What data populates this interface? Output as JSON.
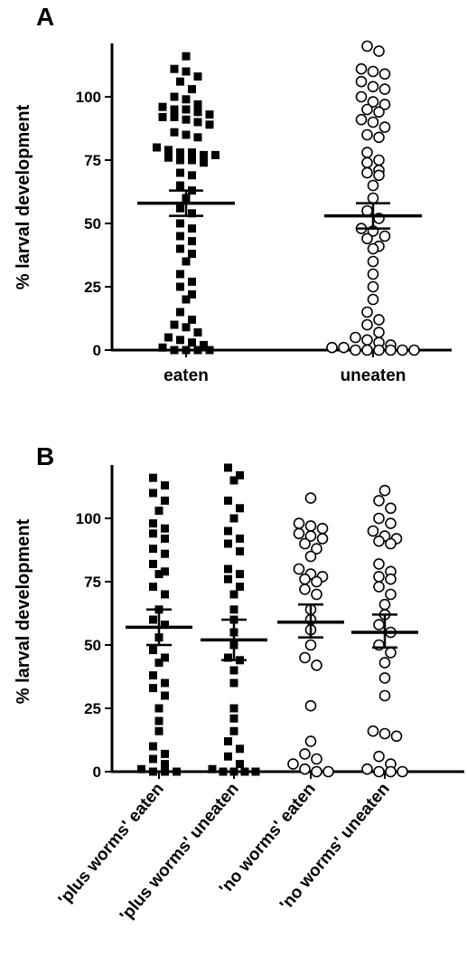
{
  "chart_data": [
    {
      "type": "scatter",
      "panel_label": "A",
      "ylabel": "% larval development",
      "ylim": [
        0,
        120
      ],
      "yticks": [
        0,
        25,
        50,
        75,
        100
      ],
      "categories": [
        "eaten",
        "uneaten"
      ],
      "grid": false,
      "series": [
        {
          "category": "eaten",
          "marker": "filled-square",
          "mean": 58,
          "sem_low": 53,
          "sem_high": 63,
          "values": [
            116,
            111,
            110,
            108,
            106,
            103,
            100,
            99,
            97,
            96,
            95,
            95,
            94,
            93,
            92,
            92,
            91,
            90,
            89,
            86,
            85,
            84,
            80,
            79,
            78,
            78,
            77,
            77,
            76,
            75,
            75,
            74,
            70,
            69,
            65,
            63,
            60,
            56,
            54,
            50,
            48,
            45,
            43,
            40,
            38,
            35,
            30,
            27,
            25,
            22,
            20,
            15,
            12,
            10,
            9,
            7,
            5,
            4,
            3,
            2,
            1,
            0,
            0,
            0,
            0
          ]
        },
        {
          "category": "uneaten",
          "marker": "open-circle",
          "mean": 53,
          "sem_low": 48,
          "sem_high": 58,
          "values": [
            120,
            118,
            111,
            110,
            109,
            106,
            104,
            103,
            100,
            98,
            97,
            95,
            94,
            91,
            90,
            88,
            85,
            84,
            78,
            75,
            74,
            71,
            70,
            69,
            65,
            60,
            55,
            52,
            48,
            47,
            45,
            44,
            41,
            40,
            35,
            30,
            25,
            20,
            15,
            12,
            10,
            7,
            5,
            4,
            3,
            2,
            1,
            1,
            0,
            0,
            0,
            0,
            0,
            0
          ]
        }
      ]
    },
    {
      "type": "scatter",
      "panel_label": "B",
      "ylabel": "% larval development",
      "ylim": [
        0,
        120
      ],
      "yticks": [
        0,
        25,
        50,
        75,
        100
      ],
      "categories": [
        "'plus worms'  eaten",
        "'plus worms' uneaten",
        "'no worms' eaten",
        "'no worms' uneaten"
      ],
      "grid": false,
      "series": [
        {
          "category": "'plus worms'  eaten",
          "marker": "filled-square",
          "mean": 57,
          "sem_low": 50,
          "sem_high": 64,
          "values": [
            116,
            113,
            110,
            107,
            103,
            98,
            96,
            94,
            92,
            88,
            86,
            82,
            79,
            78,
            73,
            70,
            64,
            60,
            58,
            53,
            48,
            45,
            43,
            38,
            35,
            33,
            30,
            25,
            20,
            16,
            10,
            7,
            5,
            3,
            1,
            0,
            0,
            0
          ]
        },
        {
          "category": "'plus worms' uneaten",
          "marker": "filled-square",
          "mean": 52,
          "sem_low": 44,
          "sem_high": 60,
          "values": [
            120,
            117,
            115,
            107,
            104,
            100,
            95,
            92,
            90,
            87,
            80,
            78,
            76,
            73,
            70,
            64,
            60,
            55,
            50,
            45,
            44,
            40,
            35,
            25,
            21,
            16,
            12,
            9,
            6,
            3,
            1,
            0,
            0,
            0,
            0
          ]
        },
        {
          "category": "'no worms' eaten",
          "marker": "open-circle",
          "mean": 59,
          "sem_low": 53,
          "sem_high": 66,
          "values": [
            108,
            98,
            97,
            96,
            94,
            93,
            92,
            90,
            88,
            85,
            80,
            78,
            77,
            76,
            75,
            72,
            70,
            64,
            60,
            56,
            50,
            45,
            42,
            26,
            12,
            7,
            5,
            3,
            1,
            0,
            0
          ]
        },
        {
          "category": "'no worms' uneaten",
          "marker": "open-circle",
          "mean": 55,
          "sem_low": 49,
          "sem_high": 62,
          "values": [
            111,
            107,
            104,
            100,
            98,
            95,
            93,
            92,
            91,
            90,
            82,
            79,
            77,
            76,
            73,
            70,
            66,
            62,
            58,
            55,
            50,
            47,
            43,
            37,
            30,
            16,
            15,
            14,
            6,
            3,
            1,
            0,
            0,
            0
          ]
        }
      ]
    }
  ]
}
